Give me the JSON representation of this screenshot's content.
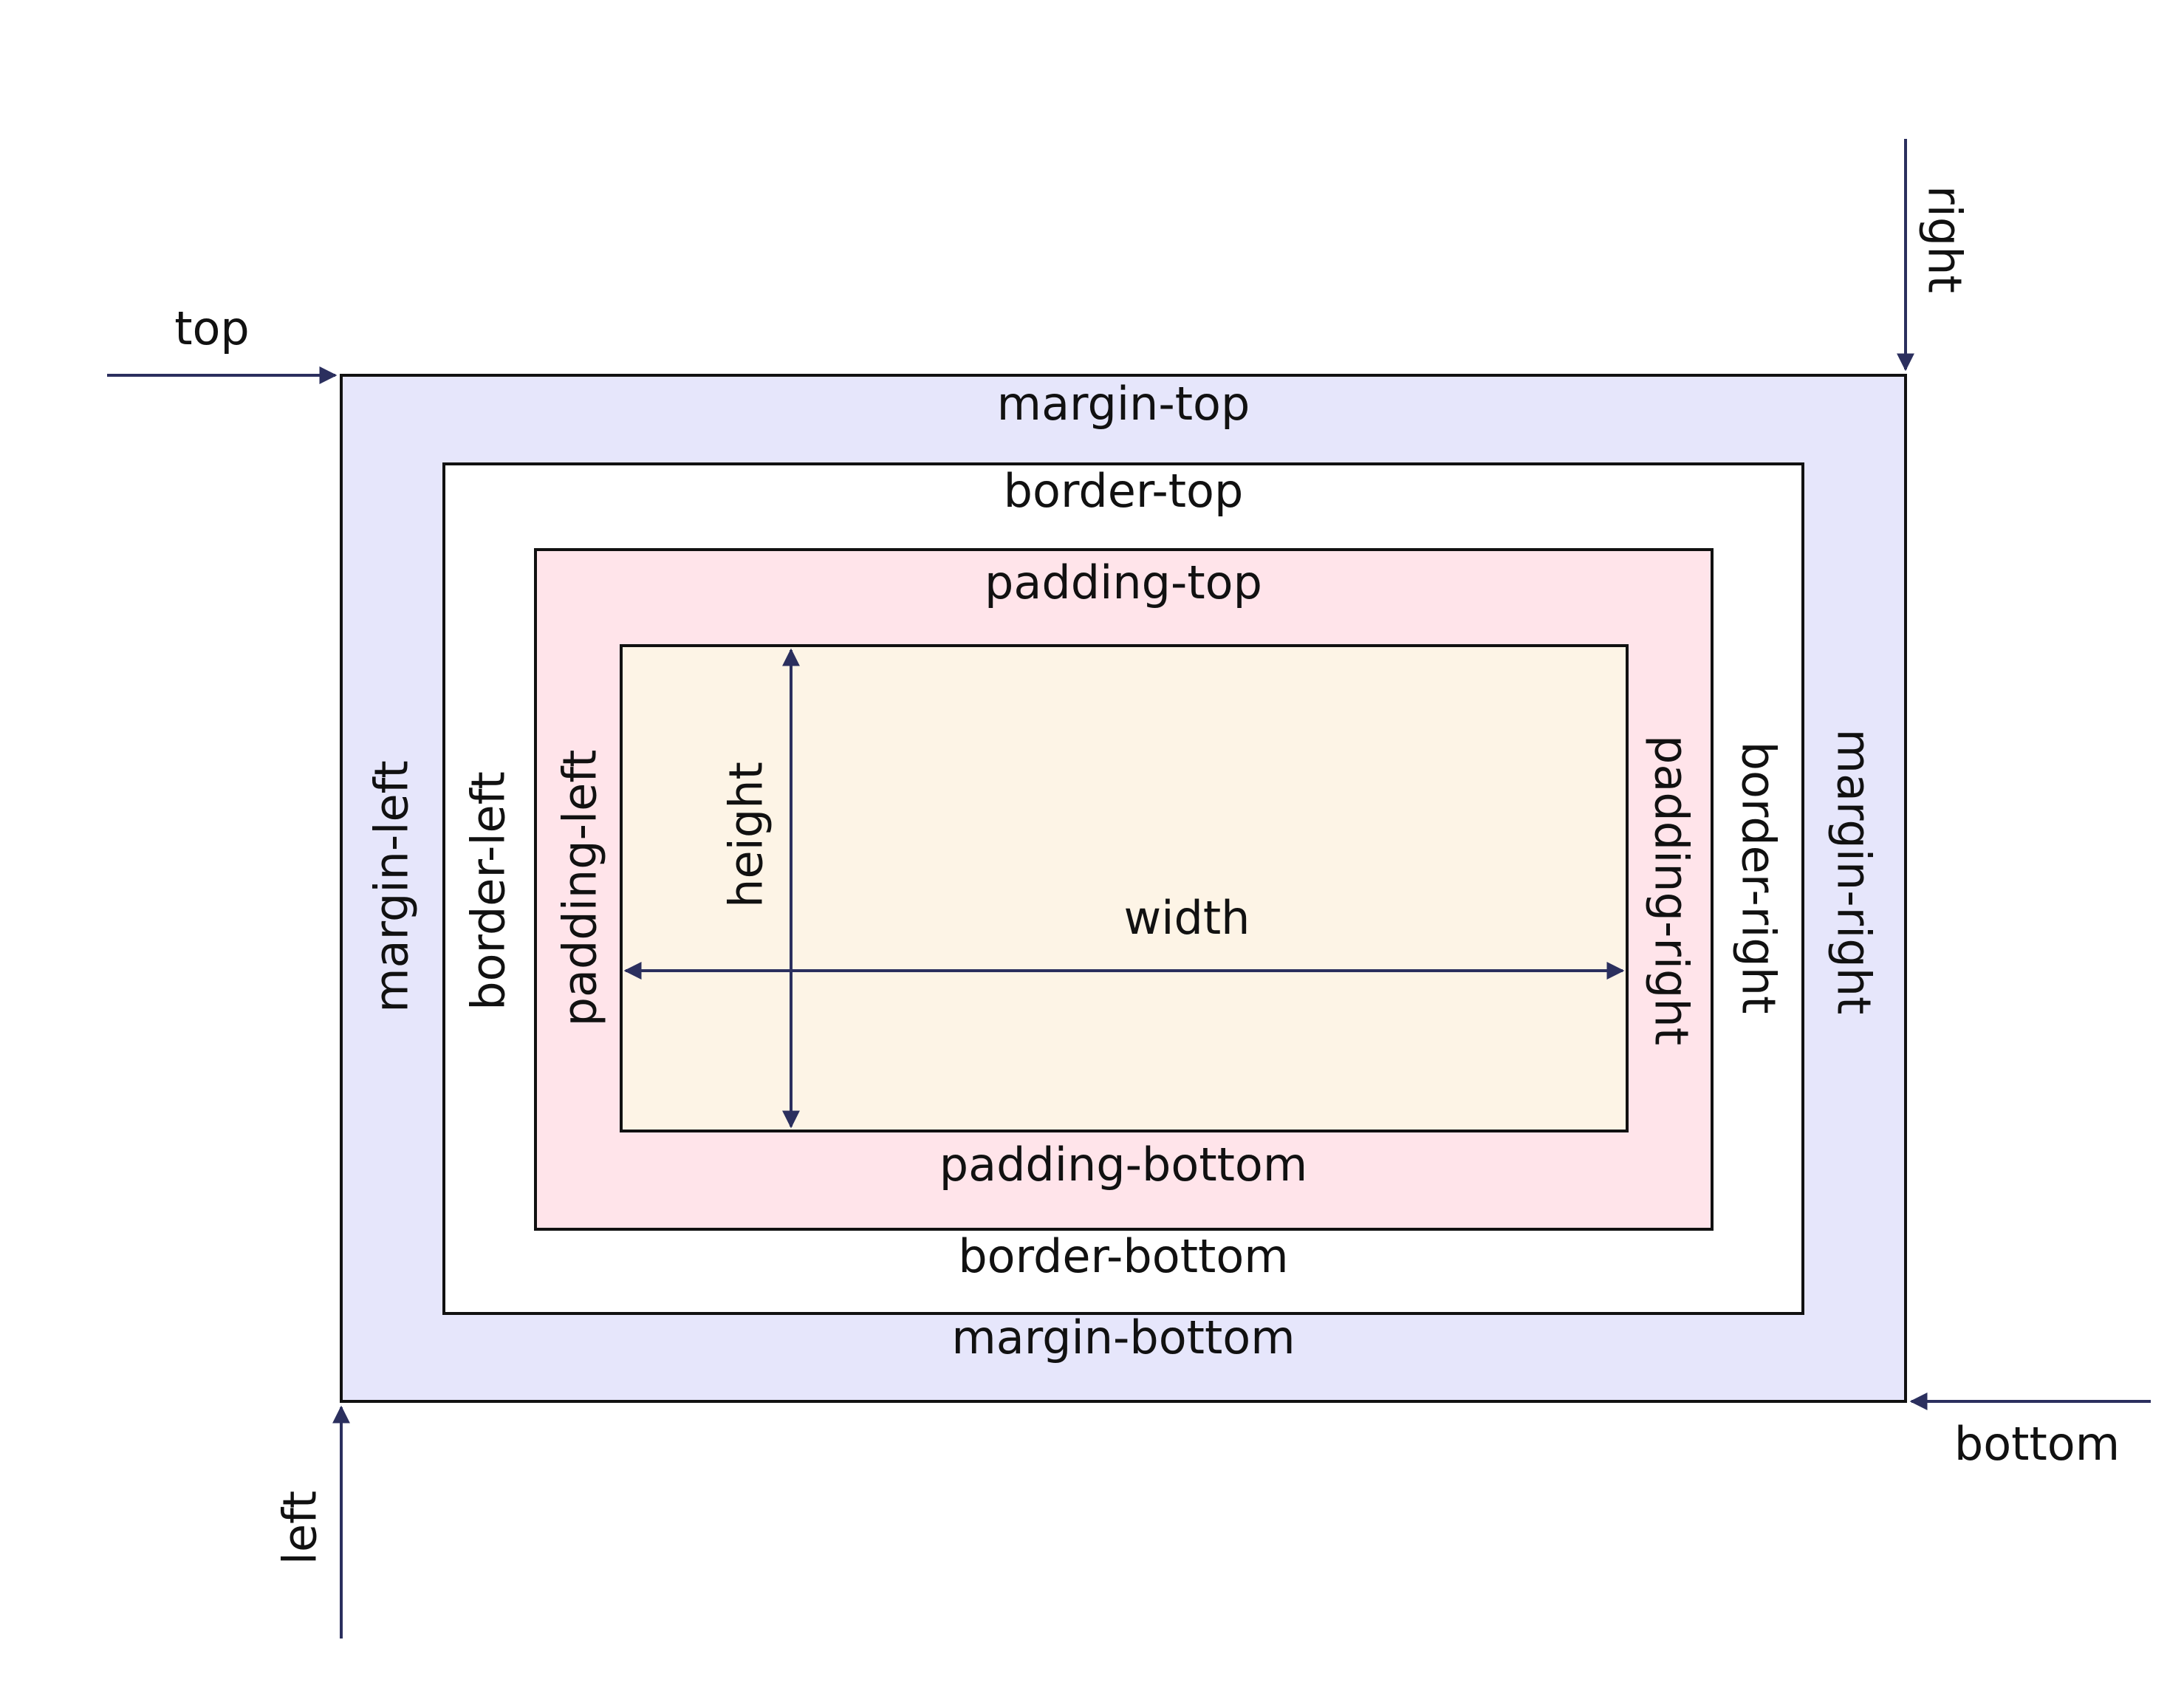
{
  "colors": {
    "margin_fill": "#E6E6FB",
    "border_fill": "#FFFFFF",
    "padding_fill": "#FFE4EA",
    "content_fill": "#FDF4E6",
    "outline": "#111111",
    "arrow": "#2B2F5E",
    "text": "#111111"
  },
  "labels": {
    "margin_top": "margin-top",
    "margin_bottom": "margin-bottom",
    "margin_left": "margin-left",
    "margin_right": "margin-right",
    "border_top": "border-top",
    "border_bottom": "border-bottom",
    "border_left": "border-left",
    "border_right": "border-right",
    "padding_top": "padding-top",
    "padding_bottom": "padding-bottom",
    "padding_left": "padding-left",
    "padding_right": "padding-right",
    "width": "width",
    "height": "height"
  },
  "positioning": {
    "top": "top",
    "right": "right",
    "bottom": "bottom",
    "left": "left"
  }
}
